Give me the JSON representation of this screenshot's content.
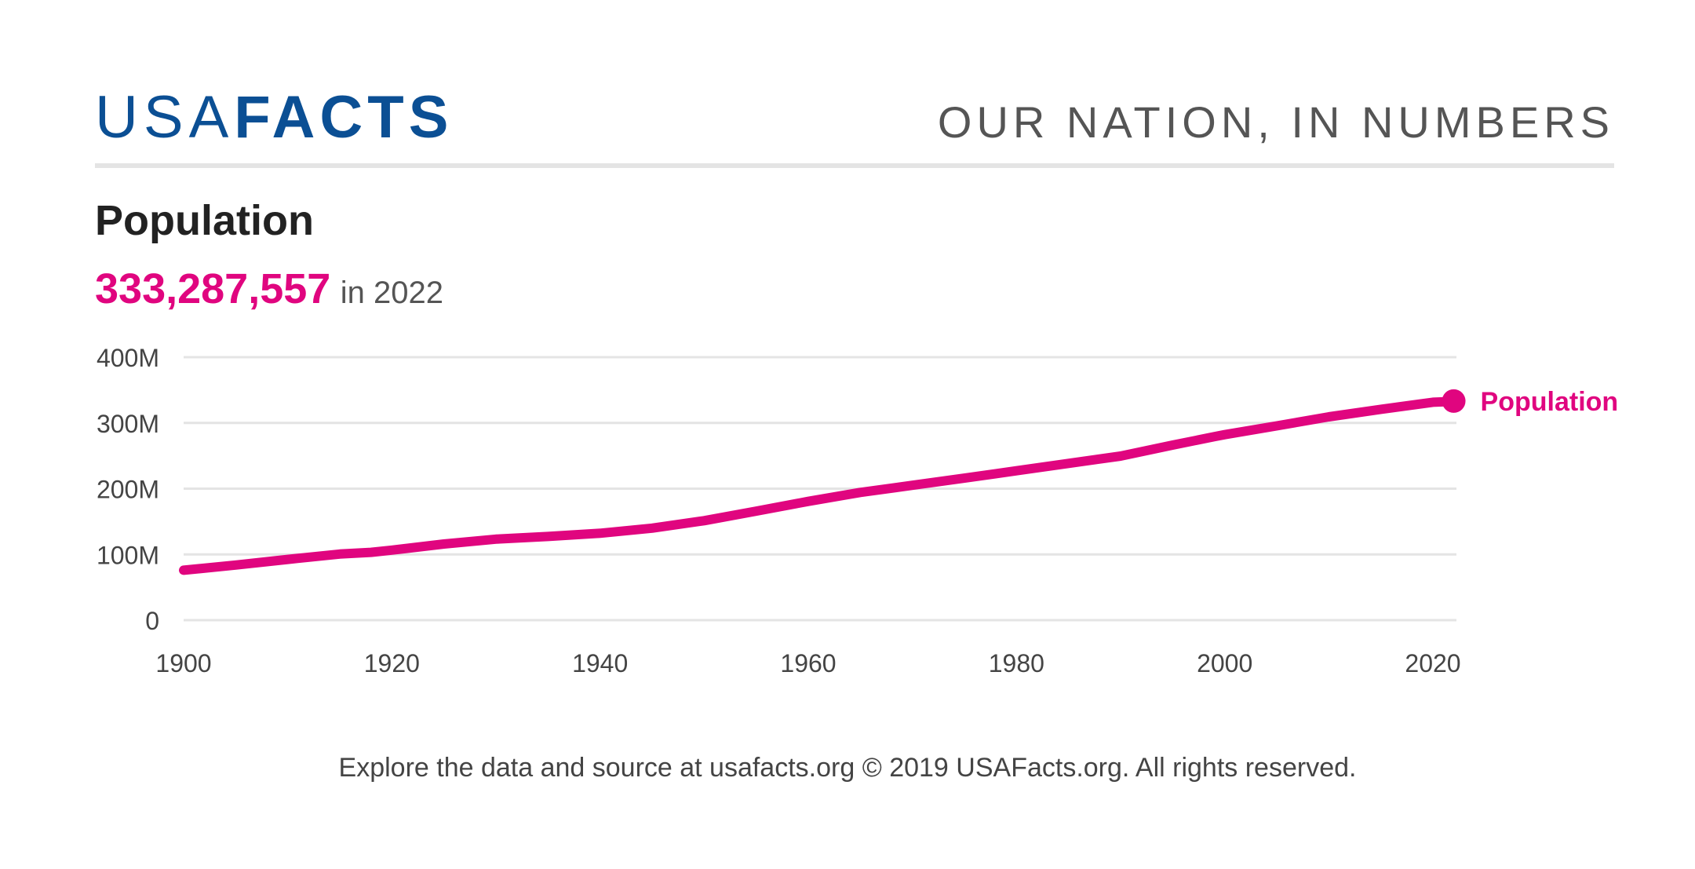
{
  "header": {
    "logo_light": "USA",
    "logo_bold": "FACTS",
    "tagline": "OUR NATION, IN NUMBERS"
  },
  "chart_title": "Population",
  "headline": {
    "value": "333,287,557",
    "suffix": "in 2022"
  },
  "footer": "Explore the data and source at usafacts.org © 2019 USAFacts.org. All rights reserved.",
  "colors": {
    "brand": "#0b4f94",
    "accent": "#e0057f",
    "grid": "#e4e4e4",
    "text": "#444444"
  },
  "chart_data": {
    "type": "line",
    "title": "Population",
    "xlabel": "",
    "ylabel": "",
    "xlim": [
      1900,
      2022
    ],
    "ylim": [
      0,
      400000000
    ],
    "grid": true,
    "x_ticks": [
      1900,
      1920,
      1940,
      1960,
      1980,
      2000,
      2020
    ],
    "x_tick_labels": [
      "1900",
      "1920",
      "1940",
      "1960",
      "1980",
      "2000",
      "2020"
    ],
    "y_ticks": [
      0,
      100000000,
      200000000,
      300000000,
      400000000
    ],
    "y_tick_labels": [
      "0",
      "100M",
      "200M",
      "300M",
      "400M"
    ],
    "series": [
      {
        "name": "Population",
        "color": "#e0057f",
        "end_label": "Population",
        "x": [
          1900,
          1905,
          1910,
          1915,
          1918,
          1920,
          1925,
          1930,
          1935,
          1940,
          1945,
          1950,
          1955,
          1960,
          1965,
          1970,
          1975,
          1980,
          1985,
          1990,
          1995,
          1999,
          2000,
          2005,
          2010,
          2015,
          2020,
          2021,
          2022
        ],
        "y": [
          76000000,
          83800000,
          92400000,
          100500000,
          103200000,
          106500000,
          115800000,
          123200000,
          127300000,
          132200000,
          140000000,
          151300000,
          165900000,
          180700000,
          194300000,
          205100000,
          216000000,
          227200000,
          238500000,
          249600000,
          266300000,
          279000000,
          282200000,
          295500000,
          309300000,
          320700000,
          331500000,
          332000000,
          333287557
        ]
      }
    ]
  }
}
